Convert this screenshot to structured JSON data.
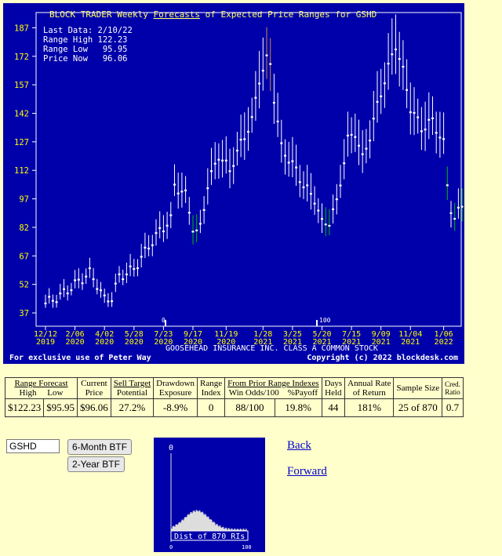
{
  "chart": {
    "title": "BLOCK TRADER Weekly Forecasts of Expected Price Ranges for GSHD",
    "title_parts": [
      "BLOCK TRADER Weekly ",
      "Forecasts",
      " of Expected Price Ranges for GSHD"
    ],
    "info_lines": [
      "Last Data: 2/10/22",
      "Range High 122.23",
      "Range Low   95.95",
      "Price Now   96.06"
    ],
    "company": "GOOSEHEAD INSURANCE INC. CLASS A COMMON STOCK",
    "footer_left": "For exclusive use of Peter Way",
    "footer_right": "Copyright (c) 2022 blockdesk.com",
    "marker_low": "0",
    "marker_high": "100",
    "colors": {
      "background": "#0000aa",
      "range": "#ffffff",
      "up_range": "#00aa00",
      "high_range": "#cc8844",
      "text": "#ffffff",
      "title": "#ffff66",
      "axis_label": "#ffff00"
    }
  },
  "chart_data": {
    "type": "range",
    "ylim": [
      30,
      195
    ],
    "yticks": [
      37,
      52,
      67,
      82,
      97,
      112,
      127,
      142,
      157,
      172,
      187
    ],
    "xticks": [
      {
        "label": [
          "12/12",
          "2019"
        ],
        "week": 0
      },
      {
        "label": [
          "2/06",
          "2020"
        ],
        "week": 8
      },
      {
        "label": [
          "4/02",
          "2020"
        ],
        "week": 16
      },
      {
        "label": [
          "5/28",
          "2020"
        ],
        "week": 24
      },
      {
        "label": [
          "7/23",
          "2020"
        ],
        "week": 32
      },
      {
        "label": [
          "9/17",
          "2020"
        ],
        "week": 40
      },
      {
        "label": [
          "11/19",
          "2020"
        ],
        "week": 49
      },
      {
        "label": [
          "1/28",
          "2021"
        ],
        "week": 59
      },
      {
        "label": [
          "3/25",
          "2021"
        ],
        "week": 67
      },
      {
        "label": [
          "5/20",
          "2021"
        ],
        "week": 75
      },
      {
        "label": [
          "7/15",
          "2021"
        ],
        "week": 83
      },
      {
        "label": [
          "9/09",
          "2021"
        ],
        "week": 91
      },
      {
        "label": [
          "11/04",
          "2021"
        ],
        "week": 99
      },
      {
        "label": [
          "1/06",
          "2022"
        ],
        "week": 108
      }
    ],
    "price_now": 96.06,
    "range_high": 122.23,
    "range_low": 95.95
  },
  "stats": {
    "headers": {
      "range_forecast": "Range Forecast",
      "high": "High",
      "low": "Low",
      "current": "Current",
      "price": "Price",
      "sell_target": "Sell Target",
      "potential": "Potential",
      "drawdown": "Drawdown",
      "exposure": "Exposure",
      "range": "Range",
      "index": "Index",
      "prior": "From Prior Range Indexes",
      "win_odds": "Win Odds/100",
      "payoff": "%Payoff",
      "days": "Days",
      "held": "Held",
      "annual": "Annual Rate",
      "of_return": "of Return",
      "sample": "Sample Size",
      "cred": "Cred.",
      "ratio": "Ratio"
    },
    "values": {
      "high": "$122.23",
      "low": "$95.95",
      "price": "$96.06",
      "potential": "27.2%",
      "exposure": "-8.9%",
      "index": "0",
      "win_odds": "88/100",
      "payoff": "19.8%",
      "held": "44",
      "annual": "181%",
      "sample": "25 of 870",
      "ratio": "0.7"
    }
  },
  "controls": {
    "symbol_value": "GSHD",
    "btn_6m": "6-Month BTF",
    "btn_2y": "2-Year BTF",
    "back": "Back",
    "forward": "Forward"
  },
  "dist": {
    "marker": "0",
    "label": "Dist of 870 RIs",
    "axis_min": "0",
    "axis_max": "100"
  }
}
